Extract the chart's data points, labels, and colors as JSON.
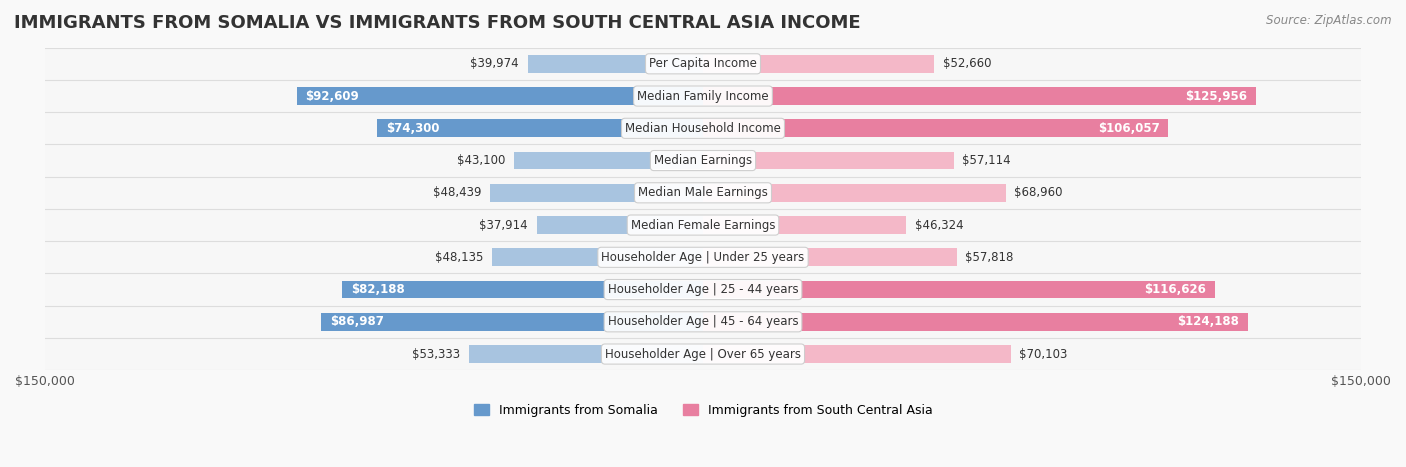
{
  "title": "IMMIGRANTS FROM SOMALIA VS IMMIGRANTS FROM SOUTH CENTRAL ASIA INCOME",
  "source": "Source: ZipAtlas.com",
  "categories": [
    "Per Capita Income",
    "Median Family Income",
    "Median Household Income",
    "Median Earnings",
    "Median Male Earnings",
    "Median Female Earnings",
    "Householder Age | Under 25 years",
    "Householder Age | 25 - 44 years",
    "Householder Age | 45 - 64 years",
    "Householder Age | Over 65 years"
  ],
  "somalia_values": [
    39974,
    92609,
    74300,
    43100,
    48439,
    37914,
    48135,
    82188,
    86987,
    53333
  ],
  "asia_values": [
    52660,
    125956,
    106057,
    57114,
    68960,
    46324,
    57818,
    116626,
    124188,
    70103
  ],
  "somalia_labels": [
    "$39,974",
    "$92,609",
    "$74,300",
    "$43,100",
    "$48,439",
    "$37,914",
    "$48,135",
    "$82,188",
    "$86,987",
    "$53,333"
  ],
  "asia_labels": [
    "$52,660",
    "$125,956",
    "$106,057",
    "$57,114",
    "$68,960",
    "$46,324",
    "$57,818",
    "$116,626",
    "$124,188",
    "$70,103"
  ],
  "somalia_color_normal": "#a8c4e0",
  "somalia_color_highlight": "#6699cc",
  "asia_color_normal": "#f4b8c8",
  "asia_color_highlight": "#e87fa0",
  "somalia_highlight": [
    1,
    2,
    7,
    8
  ],
  "asia_highlight": [
    1,
    2,
    7,
    8
  ],
  "max_val": 150000,
  "legend_somalia": "Immigrants from Somalia",
  "legend_asia": "Immigrants from South Central Asia",
  "background_color": "#f9f9f9",
  "row_bg_color": "#ffffff",
  "row_alt_color": "#f0f0f0",
  "title_fontsize": 13,
  "label_fontsize": 8.5,
  "category_fontsize": 8.5
}
